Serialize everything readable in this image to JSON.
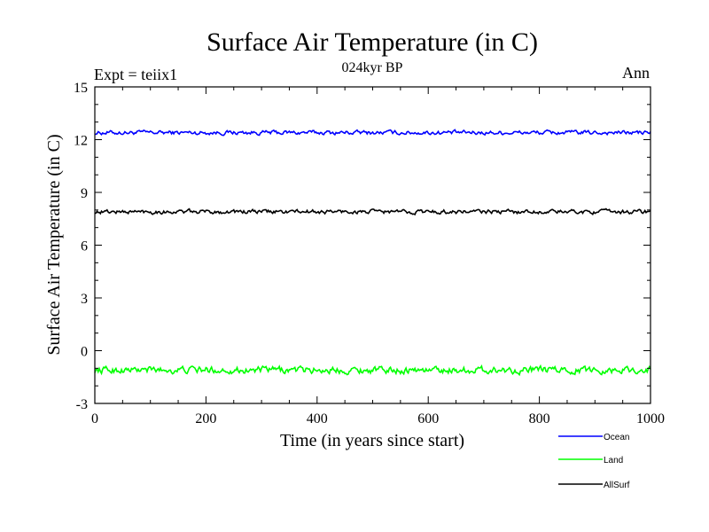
{
  "chart_data": {
    "type": "line",
    "title": "Surface Air Temperature (in C)",
    "subtitle": "024kyr BP",
    "left_label": "Expt = teiix1",
    "right_label": "Ann",
    "xlabel": "Time (in years since start)",
    "ylabel": "Surface Air Temperature (in C)",
    "xlim": [
      0,
      1000
    ],
    "ylim": [
      -3,
      15
    ],
    "xticks": [
      0,
      200,
      400,
      600,
      800,
      1000
    ],
    "yticks": [
      -3,
      0,
      3,
      6,
      9,
      12,
      15
    ],
    "grid": false,
    "legend_position": "bottom-right",
    "series": [
      {
        "name": "Ocean",
        "color": "#0000ff",
        "mean": 12.4,
        "amplitude": 0.12
      },
      {
        "name": "Land",
        "color": "#00ff00",
        "mean": -1.1,
        "amplitude": 0.2
      },
      {
        "name": "AllSurf",
        "color": "#000000",
        "mean": 7.9,
        "amplitude": 0.12
      }
    ]
  }
}
